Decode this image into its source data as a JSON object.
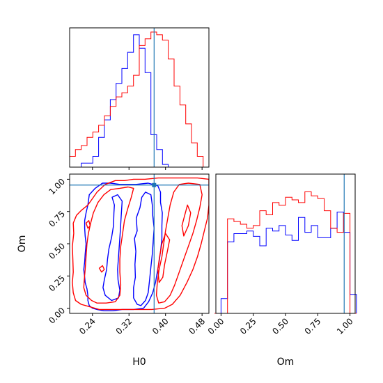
{
  "chart_data": {
    "type": "corner",
    "parameters": [
      "H0",
      "Om"
    ],
    "xlabel_bottom_left": "H0",
    "xlabel_bottom_right": "Om",
    "ylabel_left": "Om",
    "colors": {
      "series_a": "#0000ff",
      "series_b": "#ff0000",
      "truth": "#1f77b4"
    },
    "truth": {
      "H0": 0.375,
      "Om": 0.955
    },
    "axes": {
      "H0": {
        "range": [
          0.19,
          0.495
        ],
        "ticks": [
          0.24,
          0.32,
          0.4,
          0.48
        ],
        "tick_labels": [
          "0.24",
          "0.32",
          "0.40",
          "0.48"
        ]
      },
      "Om": {
        "range": [
          -0.04,
          1.04
        ],
        "ticks": [
          0.0,
          0.25,
          0.5,
          0.75,
          1.0
        ],
        "tick_labels": [
          "0.00",
          "0.25",
          "0.50",
          "0.75",
          "1.00"
        ]
      }
    },
    "hist_H0": {
      "bin_edges": [
        0.19,
        0.2027,
        0.2154,
        0.2281,
        0.2408,
        0.2535,
        0.2663,
        0.279,
        0.2917,
        0.3044,
        0.3171,
        0.3298,
        0.3425,
        0.3552,
        0.3679,
        0.3806,
        0.3933,
        0.406,
        0.4188,
        0.4315,
        0.4442,
        0.4569,
        0.4696,
        0.4823,
        0.495
      ],
      "series": [
        {
          "color": "blue",
          "values": [
            0.0,
            0.0,
            0.03,
            0.03,
            0.08,
            0.22,
            0.35,
            0.5,
            0.62,
            0.73,
            0.85,
            0.98,
            0.88,
            0.7,
            0.24,
            0.13,
            0.02,
            0.0,
            0.0,
            0.0,
            0.0,
            0.0,
            0.0,
            0.0
          ]
        },
        {
          "color": "red",
          "values": [
            0.08,
            0.13,
            0.16,
            0.22,
            0.26,
            0.31,
            0.38,
            0.45,
            0.52,
            0.55,
            0.6,
            0.68,
            0.9,
            0.95,
            1.0,
            0.98,
            0.94,
            0.8,
            0.6,
            0.46,
            0.32,
            0.18,
            0.08,
            0.0
          ]
        }
      ]
    },
    "hist_Om": {
      "bin_edges": [
        -0.05,
        0.0,
        0.05,
        0.1,
        0.15,
        0.2,
        0.25,
        0.3,
        0.35,
        0.4,
        0.45,
        0.5,
        0.55,
        0.6,
        0.65,
        0.7,
        0.75,
        0.8,
        0.85,
        0.9,
        0.95,
        1.0,
        1.05
      ],
      "series": [
        {
          "color": "blue",
          "values": [
            0.0,
            0.11,
            0.53,
            0.59,
            0.59,
            0.61,
            0.57,
            0.5,
            0.63,
            0.61,
            0.65,
            0.58,
            0.54,
            0.71,
            0.6,
            0.65,
            0.56,
            0.56,
            0.63,
            0.75,
            0.6,
            0.14
          ]
        },
        {
          "color": "red",
          "values": [
            0.0,
            0.0,
            0.7,
            0.68,
            0.66,
            0.63,
            0.65,
            0.76,
            0.73,
            0.82,
            0.8,
            0.86,
            0.84,
            0.82,
            0.9,
            0.87,
            0.85,
            0.76,
            0.63,
            0.6,
            0.74,
            0.0
          ]
        }
      ]
    },
    "contours": [
      {
        "color": "blue",
        "points": [
          [
            0.24,
            0.0
          ],
          [
            0.233,
            0.02
          ],
          [
            0.23,
            0.06
          ],
          [
            0.23,
            0.1
          ],
          [
            0.228,
            0.15
          ],
          [
            0.224,
            0.2
          ],
          [
            0.223,
            0.24
          ],
          [
            0.221,
            0.3
          ],
          [
            0.223,
            0.36
          ],
          [
            0.224,
            0.42
          ],
          [
            0.226,
            0.5
          ],
          [
            0.224,
            0.56
          ],
          [
            0.223,
            0.62
          ],
          [
            0.223,
            0.68
          ],
          [
            0.226,
            0.74
          ],
          [
            0.23,
            0.8
          ],
          [
            0.233,
            0.88
          ],
          [
            0.246,
            0.93
          ],
          [
            0.262,
            0.97
          ],
          [
            0.28,
            0.97
          ],
          [
            0.3,
            0.96
          ],
          [
            0.315,
            0.96
          ],
          [
            0.335,
            0.96
          ],
          [
            0.362,
            0.97
          ],
          [
            0.383,
            0.95
          ],
          [
            0.389,
            0.9
          ],
          [
            0.389,
            0.82
          ],
          [
            0.393,
            0.74
          ],
          [
            0.392,
            0.64
          ],
          [
            0.392,
            0.54
          ],
          [
            0.389,
            0.44
          ],
          [
            0.386,
            0.36
          ],
          [
            0.382,
            0.28
          ],
          [
            0.378,
            0.2
          ],
          [
            0.372,
            0.12
          ],
          [
            0.363,
            0.05
          ],
          [
            0.352,
            0.0
          ],
          [
            0.33,
            -0.01
          ],
          [
            0.305,
            -0.01
          ],
          [
            0.285,
            -0.02
          ],
          [
            0.265,
            -0.02
          ],
          [
            0.25,
            -0.01
          ],
          [
            0.24,
            0.0
          ]
        ]
      },
      {
        "color": "blue",
        "points": [
          [
            0.282,
            0.06
          ],
          [
            0.268,
            0.1
          ],
          [
            0.263,
            0.16
          ],
          [
            0.266,
            0.22
          ],
          [
            0.271,
            0.3
          ],
          [
            0.273,
            0.38
          ],
          [
            0.276,
            0.46
          ],
          [
            0.282,
            0.55
          ],
          [
            0.286,
            0.64
          ],
          [
            0.287,
            0.74
          ],
          [
            0.288,
            0.8
          ],
          [
            0.283,
            0.86
          ],
          [
            0.295,
            0.88
          ],
          [
            0.305,
            0.83
          ],
          [
            0.303,
            0.72
          ],
          [
            0.301,
            0.6
          ],
          [
            0.299,
            0.5
          ],
          [
            0.297,
            0.4
          ],
          [
            0.295,
            0.3
          ],
          [
            0.296,
            0.22
          ],
          [
            0.3,
            0.14
          ],
          [
            0.297,
            0.08
          ],
          [
            0.282,
            0.06
          ]
        ]
      },
      {
        "color": "blue",
        "points": [
          [
            0.338,
            0.03
          ],
          [
            0.33,
            0.08
          ],
          [
            0.33,
            0.16
          ],
          [
            0.334,
            0.24
          ],
          [
            0.333,
            0.34
          ],
          [
            0.335,
            0.44
          ],
          [
            0.332,
            0.54
          ],
          [
            0.338,
            0.6
          ],
          [
            0.336,
            0.7
          ],
          [
            0.344,
            0.78
          ],
          [
            0.348,
            0.86
          ],
          [
            0.356,
            0.9
          ],
          [
            0.368,
            0.88
          ],
          [
            0.371,
            0.8
          ],
          [
            0.372,
            0.72
          ],
          [
            0.375,
            0.62
          ],
          [
            0.373,
            0.52
          ],
          [
            0.371,
            0.42
          ],
          [
            0.368,
            0.32
          ],
          [
            0.365,
            0.22
          ],
          [
            0.362,
            0.12
          ],
          [
            0.356,
            0.06
          ],
          [
            0.346,
            0.02
          ],
          [
            0.338,
            0.03
          ]
        ]
      },
      {
        "color": "red",
        "points": [
          [
            0.215,
            0.03
          ],
          [
            0.203,
            0.06
          ],
          [
            0.198,
            0.12
          ],
          [
            0.196,
            0.2
          ],
          [
            0.198,
            0.28
          ],
          [
            0.197,
            0.38
          ],
          [
            0.196,
            0.48
          ],
          [
            0.199,
            0.58
          ],
          [
            0.198,
            0.66
          ],
          [
            0.205,
            0.72
          ],
          [
            0.216,
            0.76
          ],
          [
            0.23,
            0.8
          ],
          [
            0.238,
            0.84
          ],
          [
            0.25,
            0.9
          ],
          [
            0.268,
            0.96
          ],
          [
            0.29,
            0.99
          ],
          [
            0.31,
            0.99
          ],
          [
            0.33,
            1.0
          ],
          [
            0.355,
            1.0
          ],
          [
            0.384,
            1.01
          ],
          [
            0.41,
            1.01
          ],
          [
            0.44,
            1.01
          ],
          [
            0.47,
            1.01
          ],
          [
            0.495,
            1.0
          ],
          [
            0.495,
            0.9
          ],
          [
            0.495,
            0.8
          ],
          [
            0.492,
            0.7
          ],
          [
            0.485,
            0.6
          ],
          [
            0.478,
            0.5
          ],
          [
            0.47,
            0.4
          ],
          [
            0.46,
            0.3
          ],
          [
            0.447,
            0.2
          ],
          [
            0.432,
            0.1
          ],
          [
            0.415,
            0.03
          ],
          [
            0.398,
            0.0
          ],
          [
            0.37,
            -0.01
          ],
          [
            0.335,
            -0.01
          ],
          [
            0.305,
            -0.01
          ],
          [
            0.28,
            -0.01
          ],
          [
            0.255,
            -0.01
          ],
          [
            0.235,
            0.01
          ],
          [
            0.215,
            0.03
          ]
        ]
      },
      {
        "color": "red",
        "points": [
          [
            0.238,
            0.06
          ],
          [
            0.226,
            0.1
          ],
          [
            0.221,
            0.16
          ],
          [
            0.222,
            0.22
          ],
          [
            0.224,
            0.3
          ],
          [
            0.226,
            0.4
          ],
          [
            0.228,
            0.5
          ],
          [
            0.231,
            0.58
          ],
          [
            0.236,
            0.66
          ],
          [
            0.242,
            0.74
          ],
          [
            0.252,
            0.82
          ],
          [
            0.265,
            0.88
          ],
          [
            0.28,
            0.92
          ],
          [
            0.3,
            0.93
          ],
          [
            0.318,
            0.94
          ],
          [
            0.33,
            0.93
          ],
          [
            0.325,
            0.86
          ],
          [
            0.318,
            0.78
          ],
          [
            0.31,
            0.68
          ],
          [
            0.306,
            0.58
          ],
          [
            0.302,
            0.48
          ],
          [
            0.3,
            0.38
          ],
          [
            0.3,
            0.28
          ],
          [
            0.302,
            0.18
          ],
          [
            0.3,
            0.1
          ],
          [
            0.29,
            0.05
          ],
          [
            0.27,
            0.04
          ],
          [
            0.25,
            0.04
          ],
          [
            0.238,
            0.06
          ]
        ]
      },
      {
        "color": "red",
        "points": [
          [
            0.385,
            0.04
          ],
          [
            0.38,
            0.1
          ],
          [
            0.382,
            0.2
          ],
          [
            0.386,
            0.3
          ],
          [
            0.392,
            0.4
          ],
          [
            0.396,
            0.5
          ],
          [
            0.4,
            0.6
          ],
          [
            0.405,
            0.7
          ],
          [
            0.41,
            0.8
          ],
          [
            0.418,
            0.9
          ],
          [
            0.43,
            0.96
          ],
          [
            0.45,
            0.97
          ],
          [
            0.475,
            0.96
          ],
          [
            0.48,
            0.88
          ],
          [
            0.475,
            0.78
          ],
          [
            0.468,
            0.68
          ],
          [
            0.46,
            0.58
          ],
          [
            0.45,
            0.48
          ],
          [
            0.44,
            0.38
          ],
          [
            0.43,
            0.28
          ],
          [
            0.42,
            0.18
          ],
          [
            0.41,
            0.1
          ],
          [
            0.398,
            0.05
          ],
          [
            0.385,
            0.04
          ]
        ]
      },
      {
        "color": "red",
        "points": [
          [
            0.386,
            0.2
          ],
          [
            0.383,
            0.3
          ],
          [
            0.387,
            0.4
          ],
          [
            0.392,
            0.5
          ],
          [
            0.4,
            0.58
          ],
          [
            0.409,
            0.53
          ],
          [
            0.404,
            0.44
          ],
          [
            0.398,
            0.34
          ],
          [
            0.394,
            0.24
          ],
          [
            0.386,
            0.2
          ]
        ]
      },
      {
        "color": "red",
        "points": [
          [
            0.44,
            0.56
          ],
          [
            0.436,
            0.64
          ],
          [
            0.442,
            0.72
          ],
          [
            0.448,
            0.8
          ],
          [
            0.455,
            0.74
          ],
          [
            0.45,
            0.64
          ],
          [
            0.44,
            0.56
          ]
        ]
      },
      {
        "color": "red",
        "points": [
          [
            0.23,
            0.62
          ],
          [
            0.226,
            0.66
          ],
          [
            0.232,
            0.68
          ],
          [
            0.235,
            0.64
          ],
          [
            0.23,
            0.62
          ]
        ]
      },
      {
        "color": "red",
        "points": [
          [
            0.26,
            0.28
          ],
          [
            0.255,
            0.31
          ],
          [
            0.262,
            0.33
          ],
          [
            0.266,
            0.3
          ],
          [
            0.26,
            0.28
          ]
        ]
      }
    ]
  }
}
